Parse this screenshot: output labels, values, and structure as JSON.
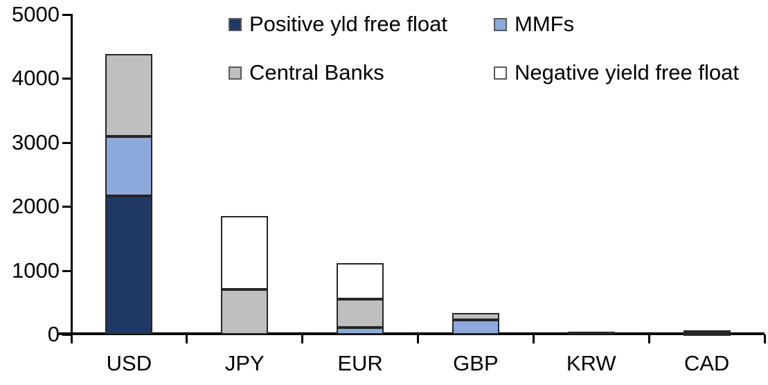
{
  "chart_data": {
    "type": "bar",
    "stacked": true,
    "title": "",
    "categories": [
      "USD",
      "JPY",
      "EUR",
      "GBP",
      "KRW",
      "CAD"
    ],
    "series": [
      {
        "name": "Positive yld free float",
        "color": "#203864",
        "values": [
          2160,
          0,
          0,
          0,
          40,
          25
        ]
      },
      {
        "name": "MMFs",
        "color": "#8EA9DB",
        "values": [
          940,
          0,
          110,
          230,
          0,
          10
        ]
      },
      {
        "name": "Central Banks",
        "color": "#BFBFBF",
        "values": [
          1280,
          700,
          440,
          110,
          0,
          25
        ]
      },
      {
        "name": "Negative yield free float",
        "color": "#FFFFFF",
        "values": [
          0,
          1150,
          560,
          0,
          0,
          0
        ]
      }
    ],
    "totals": [
      4380,
      1850,
      1110,
      340,
      40,
      60
    ],
    "ylim": [
      0,
      5000
    ],
    "yticks": [
      0,
      1000,
      2000,
      3000,
      4000,
      5000
    ],
    "grid": false,
    "legend_position": "top",
    "axis_color": "#000000",
    "bar_border_color": "#262626"
  }
}
